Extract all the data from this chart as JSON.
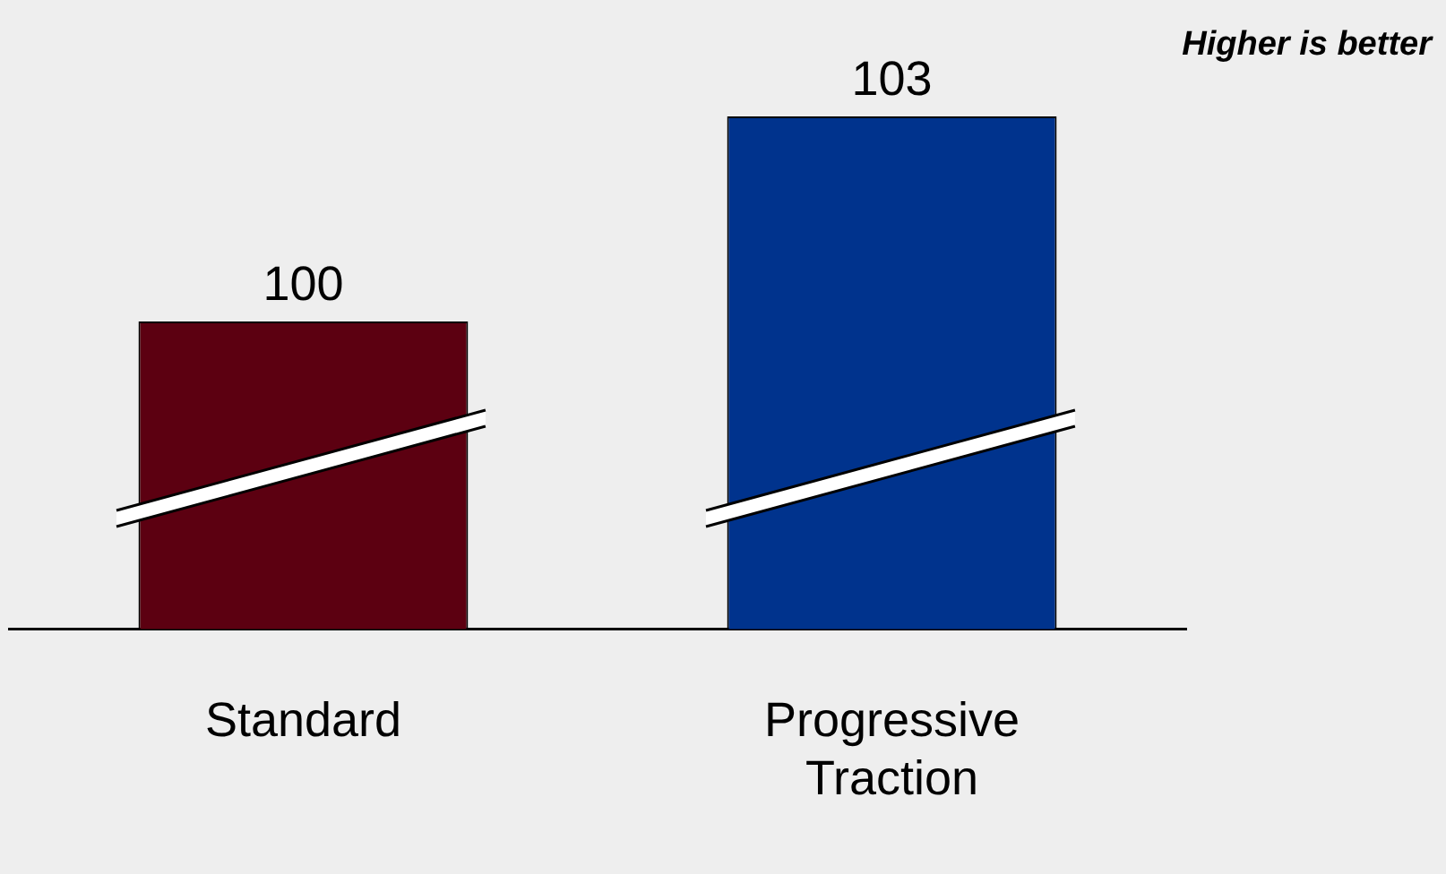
{
  "chart_data": {
    "type": "bar",
    "categories": [
      "Standard",
      "Progressive Traction"
    ],
    "values": [
      100,
      103
    ],
    "colors": [
      "#5c0011",
      "#00338d"
    ],
    "data_labels": true,
    "annotations": [
      "Higher is better"
    ],
    "legend": false,
    "grid": false
  }
}
